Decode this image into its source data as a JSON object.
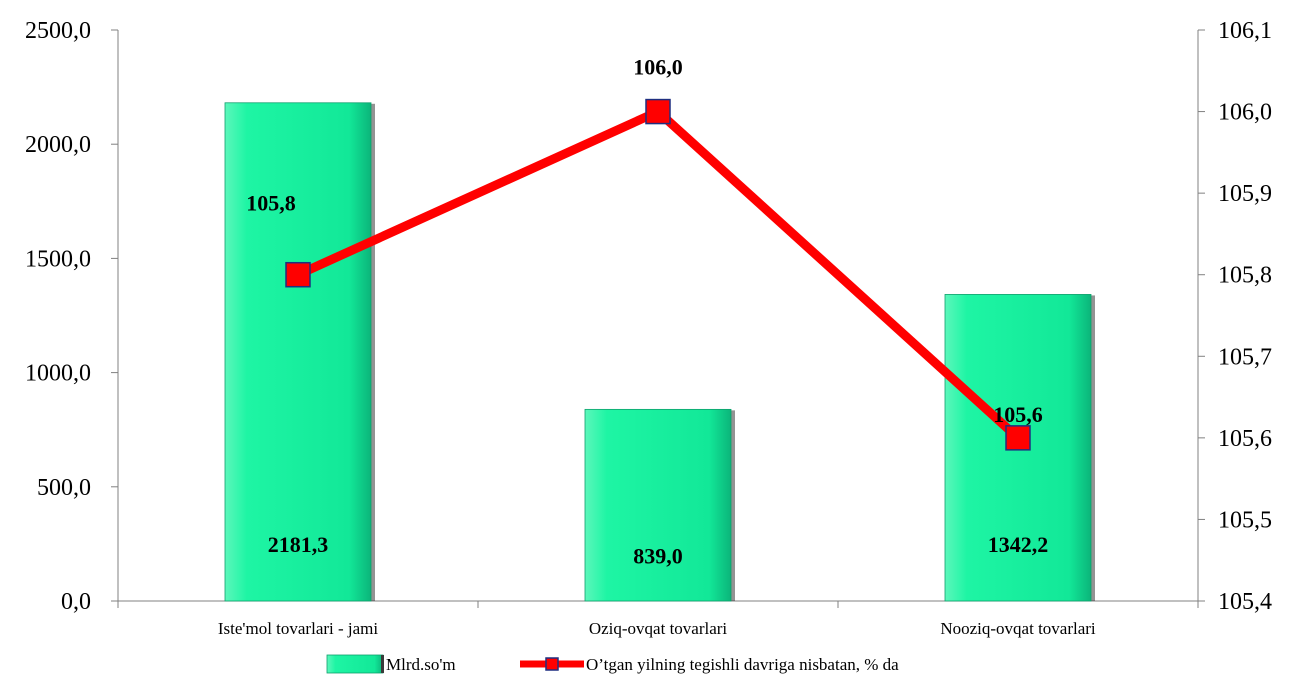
{
  "chart_data": {
    "type": "bar",
    "categories": [
      "Iste'mol tovarlari - jami",
      "Oziq-ovqat tovarlari",
      "Nooziq-ovqat tovarlari"
    ],
    "series": [
      {
        "name": "Mlrd.so'm",
        "type": "bar",
        "axis": "left",
        "values": [
          2181.3,
          839.0,
          1342.2
        ],
        "labels": [
          "2181,3",
          "839,0",
          "1342,2"
        ],
        "color": "#1ef5a4"
      },
      {
        "name": "O’tgan yilning tegishli davriga nisbatan, % da",
        "type": "line",
        "axis": "right",
        "values": [
          105.8,
          106.0,
          105.6
        ],
        "labels": [
          "105,8",
          "106,0",
          "105,6"
        ],
        "color": "#ff0000"
      }
    ],
    "y_left": {
      "ylim": [
        0,
        2500
      ],
      "ticks": [
        "0,0",
        "500,0",
        "1000,0",
        "1500,0",
        "2000,0",
        "2500,0"
      ]
    },
    "y_right": {
      "ylim": [
        105.4,
        106.1
      ],
      "ticks": [
        "105,4",
        "105,5",
        "105,6",
        "105,7",
        "105,8",
        "105,9",
        "106,0",
        "106,1"
      ]
    },
    "legend": "bottom",
    "grid": false
  }
}
